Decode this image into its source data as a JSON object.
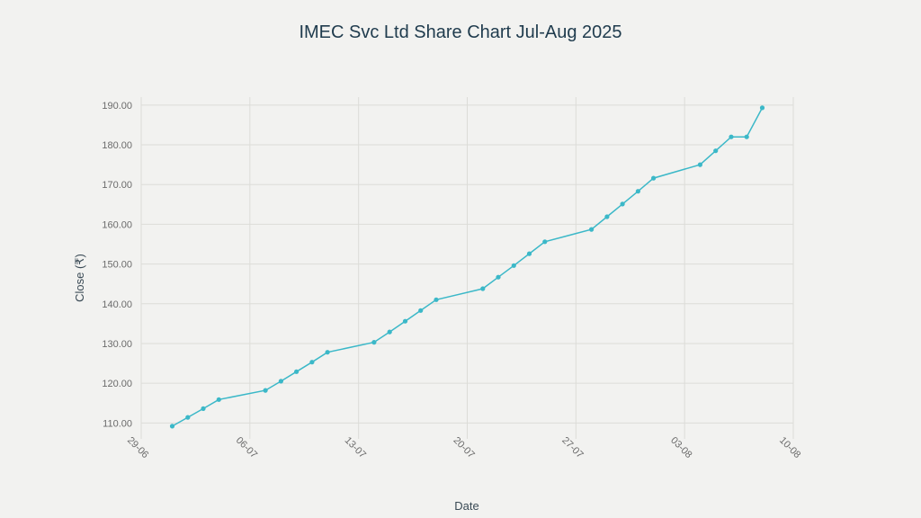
{
  "chart_data": {
    "type": "line",
    "title": "IMEC Svc Ltd Share Chart Jul-Aug 2025",
    "xlabel": "Date",
    "ylabel": "Close (₹)",
    "x_ticks": [
      "29-06",
      "06-07",
      "13-07",
      "20-07",
      "27-07",
      "03-08",
      "10-08"
    ],
    "y_ticks": [
      "110.00",
      "120.00",
      "130.00",
      "140.00",
      "150.00",
      "160.00",
      "170.00",
      "180.00",
      "190.00"
    ],
    "xlim": [
      "2025-06-29",
      "2025-08-10"
    ],
    "ylim": [
      106.0,
      192.0
    ],
    "grid": true,
    "line_color": "#3bb8c8",
    "series": [
      {
        "x": [
          "2025-07-01",
          "2025-07-02",
          "2025-07-03",
          "2025-07-04",
          "2025-07-07",
          "2025-07-08",
          "2025-07-09",
          "2025-07-10",
          "2025-07-11",
          "2025-07-14",
          "2025-07-15",
          "2025-07-16",
          "2025-07-17",
          "2025-07-18",
          "2025-07-21",
          "2025-07-22",
          "2025-07-23",
          "2025-07-24",
          "2025-07-25",
          "2025-07-28",
          "2025-07-29",
          "2025-07-30",
          "2025-07-31",
          "2025-08-01",
          "2025-08-04",
          "2025-08-05",
          "2025-08-06",
          "2025-08-07",
          "2025-08-08"
        ],
        "values": [
          109.2,
          111.4,
          113.6,
          115.9,
          118.2,
          120.5,
          122.9,
          125.3,
          127.8,
          130.3,
          132.9,
          135.6,
          138.3,
          141.0,
          143.8,
          146.7,
          149.6,
          152.6,
          155.6,
          158.7,
          161.9,
          165.1,
          168.3,
          171.6,
          175.0,
          178.5,
          182.0,
          182.0,
          189.3
        ]
      }
    ]
  }
}
